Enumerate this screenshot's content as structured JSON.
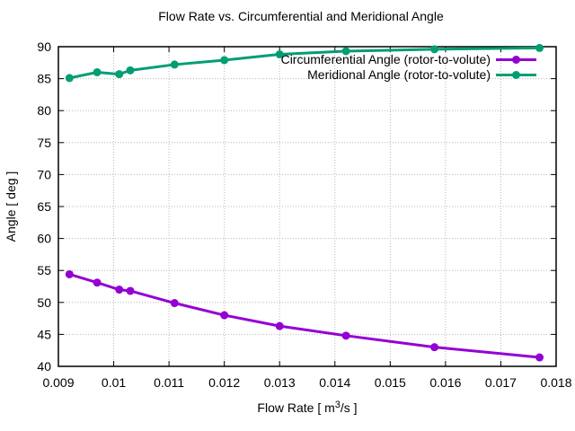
{
  "chart_data": {
    "type": "line",
    "title": "Flow Rate vs. Circumferential and Meridional Angle",
    "xlabel_prefix": "Flow Rate [ m",
    "xlabel_sup": "3",
    "xlabel_suffix": "/s ]",
    "ylabel": "Angle [ deg ]",
    "xlim": [
      0.009,
      0.018
    ],
    "ylim": [
      40,
      90
    ],
    "grid": true,
    "legend_position": "top-right-inside",
    "xtick_values": [
      0.009,
      0.01,
      0.011,
      0.012,
      0.013,
      0.014,
      0.015,
      0.016,
      0.017,
      0.018
    ],
    "xtick_labels": [
      "0.009",
      "0.01",
      "0.011",
      "0.012",
      "0.013",
      "0.014",
      "0.015",
      "0.016",
      "0.017",
      "0.018"
    ],
    "ytick_values": [
      40,
      45,
      50,
      55,
      60,
      65,
      70,
      75,
      80,
      85,
      90
    ],
    "ytick_labels": [
      "40",
      "45",
      "50",
      "55",
      "60",
      "65",
      "70",
      "75",
      "80",
      "85",
      "90"
    ],
    "x": [
      0.0092,
      0.0097,
      0.0101,
      0.0103,
      0.0111,
      0.012,
      0.013,
      0.0142,
      0.0158,
      0.0177
    ],
    "series": [
      {
        "name": "Circumferential Angle (rotor-to-volute)",
        "color": "#9400d3",
        "values": [
          54.4,
          53.1,
          52.0,
          51.8,
          49.9,
          48.0,
          46.3,
          44.8,
          43.0,
          41.4
        ]
      },
      {
        "name": "Meridional Angle (rotor-to-volute)",
        "color": "#009e73",
        "values": [
          85.1,
          86.0,
          85.7,
          86.3,
          87.2,
          87.9,
          88.8,
          89.3,
          89.6,
          89.8
        ]
      }
    ],
    "colors": {
      "grid": "#b8b8b8",
      "border": "#000000",
      "text": "#000000"
    }
  }
}
